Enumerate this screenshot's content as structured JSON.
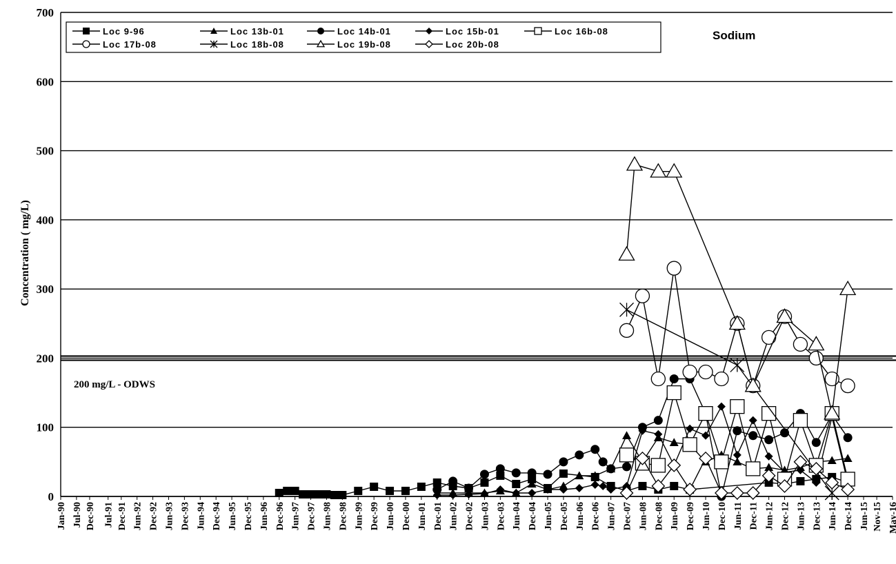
{
  "chart_data": {
    "type": "line",
    "title": "Sodium",
    "ylabel": "Concentration ( mg/L)",
    "xlabel": "",
    "ylim": [
      0,
      700
    ],
    "yticks": [
      0,
      100,
      200,
      300,
      400,
      500,
      600,
      700
    ],
    "grid": "horizontal",
    "legend_position": "top-left",
    "xlim": [
      "1990-01",
      "2016-05"
    ],
    "xticks": [
      {
        "label": "Jan-90",
        "date": "1990-01"
      },
      {
        "label": "Jul-90",
        "date": "1990-07"
      },
      {
        "label": "Dec-90",
        "date": "1990-12"
      },
      {
        "label": "Jul-91",
        "date": "1991-07"
      },
      {
        "label": "Dec-91",
        "date": "1991-12"
      },
      {
        "label": "Jun-92",
        "date": "1992-06"
      },
      {
        "label": "Dec-92",
        "date": "1992-12"
      },
      {
        "label": "Jun-93",
        "date": "1993-06"
      },
      {
        "label": "Dec-93",
        "date": "1993-12"
      },
      {
        "label": "Jun-94",
        "date": "1994-06"
      },
      {
        "label": "Dec-94",
        "date": "1994-12"
      },
      {
        "label": "Jun-95",
        "date": "1995-06"
      },
      {
        "label": "Dec-95",
        "date": "1995-12"
      },
      {
        "label": "Jun-96",
        "date": "1996-06"
      },
      {
        "label": "Dec-96",
        "date": "1996-12"
      },
      {
        "label": "Jun-97",
        "date": "1997-06"
      },
      {
        "label": "Dec-97",
        "date": "1997-12"
      },
      {
        "label": "Jun-98",
        "date": "1998-06"
      },
      {
        "label": "Dec-98",
        "date": "1998-12"
      },
      {
        "label": "Jun-99",
        "date": "1999-06"
      },
      {
        "label": "Dec-99",
        "date": "1999-12"
      },
      {
        "label": "Jun-00",
        "date": "2000-06"
      },
      {
        "label": "Dec-00",
        "date": "2000-12"
      },
      {
        "label": "Jun-01",
        "date": "2001-06"
      },
      {
        "label": "Dec-01",
        "date": "2001-12"
      },
      {
        "label": "Jun-02",
        "date": "2002-06"
      },
      {
        "label": "Dec-02",
        "date": "2002-12"
      },
      {
        "label": "Jun-03",
        "date": "2003-06"
      },
      {
        "label": "Dec-03",
        "date": "2003-12"
      },
      {
        "label": "Jun-04",
        "date": "2004-06"
      },
      {
        "label": "Dec-04",
        "date": "2004-12"
      },
      {
        "label": "Jun-05",
        "date": "2005-06"
      },
      {
        "label": "Dec-05",
        "date": "2005-12"
      },
      {
        "label": "Jun-06",
        "date": "2006-06"
      },
      {
        "label": "Dec-06",
        "date": "2006-12"
      },
      {
        "label": "Jun-07",
        "date": "2007-06"
      },
      {
        "label": "Dec-07",
        "date": "2007-12"
      },
      {
        "label": "Jun-08",
        "date": "2008-06"
      },
      {
        "label": "Dec-08",
        "date": "2008-12"
      },
      {
        "label": "Jun-09",
        "date": "2009-06"
      },
      {
        "label": "Dec-09",
        "date": "2009-12"
      },
      {
        "label": "Jun-10",
        "date": "2010-06"
      },
      {
        "label": "Dec-10",
        "date": "2010-12"
      },
      {
        "label": "Jun-11",
        "date": "2011-06"
      },
      {
        "label": "Dec-11",
        "date": "2011-12"
      },
      {
        "label": "Jun-12",
        "date": "2012-06"
      },
      {
        "label": "Dec-12",
        "date": "2012-12"
      },
      {
        "label": "Jun-13",
        "date": "2013-06"
      },
      {
        "label": "Dec-13",
        "date": "2013-12"
      },
      {
        "label": "Jun-14",
        "date": "2014-06"
      },
      {
        "label": "Dec-14",
        "date": "2014-12"
      },
      {
        "label": "Jun-15",
        "date": "2015-06"
      },
      {
        "label": "Nov-15",
        "date": "2015-11"
      },
      {
        "label": "May-16",
        "date": "2016-05"
      }
    ],
    "reference_line": {
      "value": 200,
      "label": "200 mg/L - ODWS"
    },
    "series": [
      {
        "name": "Loc 9-96",
        "marker": "square-filled",
        "points": [
          [
            "1996-12",
            5
          ],
          [
            "1997-03",
            8
          ],
          [
            "1997-06",
            8
          ],
          [
            "1997-09",
            3
          ],
          [
            "1997-12",
            3
          ],
          [
            "1998-03",
            3
          ],
          [
            "1998-06",
            3
          ],
          [
            "1998-09",
            2
          ],
          [
            "1998-12",
            2
          ],
          [
            "1999-06",
            8
          ],
          [
            "1999-12",
            14
          ],
          [
            "2000-06",
            8
          ],
          [
            "2000-12",
            8
          ],
          [
            "2001-06",
            14
          ],
          [
            "2001-12",
            20
          ],
          [
            "2002-06",
            15
          ],
          [
            "2002-12",
            12
          ],
          [
            "2003-06",
            20
          ],
          [
            "2003-12",
            30
          ],
          [
            "2004-06",
            18
          ],
          [
            "2004-12",
            25
          ],
          [
            "2005-06",
            12
          ],
          [
            "2005-12",
            33
          ],
          [
            "2006-12",
            28
          ],
          [
            "2007-06",
            15
          ],
          [
            "2007-12",
            8
          ],
          [
            "2008-06",
            15
          ],
          [
            "2008-12",
            10
          ],
          [
            "2009-06",
            15
          ],
          [
            "2009-12",
            10
          ],
          [
            "2012-06",
            20
          ],
          [
            "2012-12",
            18
          ],
          [
            "2013-06",
            22
          ],
          [
            "2013-12",
            25
          ],
          [
            "2014-06",
            28
          ],
          [
            "2014-12",
            20
          ]
        ]
      },
      {
        "name": "Loc 13b-01",
        "marker": "triangle-filled",
        "points": [
          [
            "2001-12",
            5
          ],
          [
            "2002-06",
            5
          ],
          [
            "2002-12",
            5
          ],
          [
            "2003-06",
            5
          ],
          [
            "2003-12",
            8
          ],
          [
            "2004-06",
            5
          ],
          [
            "2004-12",
            18
          ],
          [
            "2005-06",
            10
          ],
          [
            "2005-12",
            15
          ],
          [
            "2006-06",
            30
          ],
          [
            "2006-12",
            30
          ],
          [
            "2007-06",
            40
          ],
          [
            "2007-12",
            88
          ],
          [
            "2008-06",
            50
          ],
          [
            "2008-12",
            85
          ],
          [
            "2009-06",
            78
          ],
          [
            "2009-12",
            75
          ],
          [
            "2010-06",
            50
          ],
          [
            "2010-12",
            60
          ],
          [
            "2011-06",
            50
          ],
          [
            "2011-12",
            40
          ],
          [
            "2012-06",
            42
          ],
          [
            "2012-12",
            38
          ],
          [
            "2013-06",
            42
          ],
          [
            "2013-12",
            50
          ],
          [
            "2014-06",
            52
          ],
          [
            "2014-12",
            55
          ]
        ]
      },
      {
        "name": "Loc 14b-01",
        "marker": "circle-filled",
        "points": [
          [
            "2001-12",
            10
          ],
          [
            "2002-06",
            22
          ],
          [
            "2002-12",
            12
          ],
          [
            "2003-06",
            32
          ],
          [
            "2003-12",
            40
          ],
          [
            "2004-06",
            34
          ],
          [
            "2004-12",
            34
          ],
          [
            "2005-06",
            32
          ],
          [
            "2005-12",
            50
          ],
          [
            "2006-06",
            60
          ],
          [
            "2006-12",
            68
          ],
          [
            "2007-03",
            50
          ],
          [
            "2007-06",
            40
          ],
          [
            "2007-12",
            43
          ],
          [
            "2008-06",
            100
          ],
          [
            "2008-12",
            110
          ],
          [
            "2009-06",
            170
          ],
          [
            "2009-12",
            170
          ],
          [
            "2010-06",
            120
          ],
          [
            "2010-12",
            0
          ],
          [
            "2011-06",
            95
          ],
          [
            "2011-12",
            88
          ],
          [
            "2012-06",
            82
          ],
          [
            "2012-12",
            92
          ],
          [
            "2013-06",
            120
          ],
          [
            "2013-12",
            78
          ],
          [
            "2014-06",
            118
          ],
          [
            "2014-12",
            85
          ]
        ]
      },
      {
        "name": "Loc 15b-01",
        "marker": "diamond-filled",
        "points": [
          [
            "2001-12",
            2
          ],
          [
            "2002-06",
            2
          ],
          [
            "2002-12",
            3
          ],
          [
            "2003-06",
            4
          ],
          [
            "2003-12",
            10
          ],
          [
            "2004-06",
            5
          ],
          [
            "2004-12",
            5
          ],
          [
            "2005-06",
            10
          ],
          [
            "2005-12",
            10
          ],
          [
            "2006-06",
            12
          ],
          [
            "2006-12",
            17
          ],
          [
            "2007-03",
            15
          ],
          [
            "2007-06",
            10
          ],
          [
            "2007-12",
            15
          ],
          [
            "2008-06",
            95
          ],
          [
            "2008-12",
            90
          ],
          [
            "2009-06",
            45
          ],
          [
            "2009-12",
            98
          ],
          [
            "2010-06",
            88
          ],
          [
            "2010-12",
            130
          ],
          [
            "2011-06",
            60
          ],
          [
            "2011-12",
            110
          ],
          [
            "2012-06",
            58
          ],
          [
            "2012-12",
            35
          ],
          [
            "2013-06",
            38
          ],
          [
            "2013-12",
            20
          ],
          [
            "2014-06",
            115
          ],
          [
            "2014-12",
            20
          ]
        ]
      },
      {
        "name": "Loc 16b-08",
        "marker": "square-open",
        "points": [
          [
            "2007-12",
            60
          ],
          [
            "2008-06",
            48
          ],
          [
            "2008-12",
            45
          ],
          [
            "2009-06",
            150
          ],
          [
            "2009-12",
            75
          ],
          [
            "2010-06",
            120
          ],
          [
            "2010-12",
            50
          ],
          [
            "2011-06",
            130
          ],
          [
            "2011-12",
            40
          ],
          [
            "2012-06",
            120
          ],
          [
            "2012-12",
            25
          ],
          [
            "2013-06",
            110
          ],
          [
            "2013-12",
            45
          ],
          [
            "2014-06",
            120
          ],
          [
            "2014-12",
            25
          ]
        ]
      },
      {
        "name": "Loc 17b-08",
        "marker": "circle-open",
        "points": [
          [
            "2007-12",
            240
          ],
          [
            "2008-06",
            290
          ],
          [
            "2008-12",
            170
          ],
          [
            "2009-06",
            330
          ],
          [
            "2009-12",
            180
          ],
          [
            "2010-06",
            180
          ],
          [
            "2010-12",
            170
          ],
          [
            "2011-06",
            250
          ],
          [
            "2011-12",
            160
          ],
          [
            "2012-06",
            230
          ],
          [
            "2012-12",
            260
          ],
          [
            "2013-06",
            220
          ],
          [
            "2013-12",
            200
          ],
          [
            "2014-06",
            170
          ],
          [
            "2014-12",
            160
          ]
        ]
      },
      {
        "name": "Loc 18b-08",
        "marker": "star",
        "points": [
          [
            "2007-12",
            270
          ],
          [
            "2011-06",
            190
          ],
          [
            "2014-06",
            5
          ]
        ]
      },
      {
        "name": "Loc 19b-08",
        "marker": "triangle-open",
        "points": [
          [
            "2007-12",
            350
          ],
          [
            "2008-03",
            480
          ],
          [
            "2008-12",
            470
          ],
          [
            "2009-06",
            470
          ],
          [
            "2011-06",
            250
          ],
          [
            "2011-12",
            160
          ],
          [
            "2012-12",
            260
          ],
          [
            "2013-12",
            220
          ],
          [
            "2014-06",
            120
          ],
          [
            "2014-12",
            300
          ]
        ]
      },
      {
        "name": "Loc 20b-08",
        "marker": "diamond-open",
        "points": [
          [
            "2007-12",
            5
          ],
          [
            "2008-06",
            55
          ],
          [
            "2008-12",
            15
          ],
          [
            "2009-06",
            45
          ],
          [
            "2009-12",
            10
          ],
          [
            "2010-06",
            55
          ],
          [
            "2010-12",
            5
          ],
          [
            "2011-06",
            5
          ],
          [
            "2011-12",
            5
          ],
          [
            "2012-06",
            30
          ],
          [
            "2012-12",
            15
          ],
          [
            "2013-06",
            50
          ],
          [
            "2013-12",
            40
          ],
          [
            "2014-06",
            20
          ],
          [
            "2014-12",
            10
          ]
        ]
      }
    ]
  }
}
